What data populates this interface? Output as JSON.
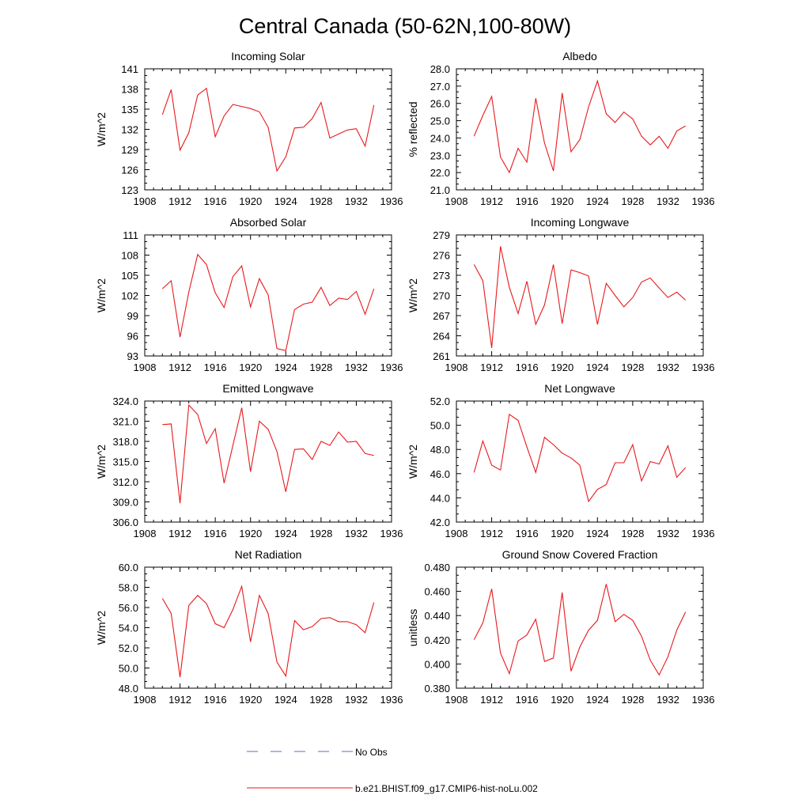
{
  "figure": {
    "title": "Central Canada (50-62N,100-80W)",
    "legend": [
      {
        "label": "No Obs",
        "style": "dashed",
        "color": "#5b6bbf"
      },
      {
        "label": "b.e21.BHIST.f09_g17.CMIP6-hist-noLu.002",
        "style": "solid",
        "color": "#e8191c"
      }
    ]
  },
  "chart_data": [
    {
      "type": "line",
      "title": "Incoming Solar",
      "ylabel": "W/m^2",
      "xlim": [
        1908,
        1936
      ],
      "xticks": [
        "1908",
        "1912",
        "1916",
        "1920",
        "1924",
        "1928",
        "1932",
        "1936"
      ],
      "ylim": [
        123,
        141
      ],
      "yticks": [
        "123",
        "126",
        "129",
        "132",
        "135",
        "138",
        "141"
      ],
      "x": [
        1910,
        1911,
        1912,
        1913,
        1914,
        1915,
        1916,
        1917,
        1918,
        1919,
        1920,
        1921,
        1922,
        1923,
        1924,
        1925,
        1926,
        1927,
        1928,
        1929,
        1930,
        1931,
        1932,
        1933,
        1934
      ],
      "series": [
        {
          "values": [
            134.2,
            137.9,
            128.9,
            131.5,
            137.1,
            138.1,
            130.9,
            134.0,
            135.7,
            135.4,
            135.1,
            134.6,
            132.3,
            125.8,
            127.9,
            132.2,
            132.3,
            133.6,
            136.0,
            130.7,
            131.3,
            131.9,
            132.1,
            129.5,
            135.6
          ],
          "color": "#e8191c"
        }
      ]
    },
    {
      "type": "line",
      "title": "Albedo",
      "ylabel": "% reflected",
      "xlim": [
        1908,
        1936
      ],
      "xticks": [
        "1908",
        "1912",
        "1916",
        "1920",
        "1924",
        "1928",
        "1932",
        "1936"
      ],
      "ylim": [
        21.0,
        28.0
      ],
      "yticks": [
        "21.0",
        "22.0",
        "23.0",
        "24.0",
        "25.0",
        "26.0",
        "27.0",
        "28.0"
      ],
      "x": [
        1910,
        1911,
        1912,
        1913,
        1914,
        1915,
        1916,
        1917,
        1918,
        1919,
        1920,
        1921,
        1922,
        1923,
        1924,
        1925,
        1926,
        1927,
        1928,
        1929,
        1930,
        1931,
        1932,
        1933,
        1934
      ],
      "series": [
        {
          "values": [
            24.1,
            25.3,
            26.4,
            22.9,
            22.0,
            23.4,
            22.6,
            26.3,
            23.7,
            22.1,
            26.6,
            23.2,
            23.9,
            25.8,
            27.3,
            25.4,
            24.9,
            25.5,
            25.1,
            24.1,
            23.6,
            24.1,
            23.4,
            24.4,
            24.7
          ],
          "color": "#e8191c"
        }
      ]
    },
    {
      "type": "line",
      "title": "Absorbed Solar",
      "ylabel": "W/m^2",
      "xlim": [
        1908,
        1936
      ],
      "xticks": [
        "1908",
        "1912",
        "1916",
        "1920",
        "1924",
        "1928",
        "1932",
        "1936"
      ],
      "ylim": [
        93,
        111
      ],
      "yticks": [
        "93",
        "96",
        "99",
        "102",
        "105",
        "108",
        "111"
      ],
      "x": [
        1910,
        1911,
        1912,
        1913,
        1914,
        1915,
        1916,
        1917,
        1918,
        1919,
        1920,
        1921,
        1922,
        1923,
        1924,
        1925,
        1926,
        1927,
        1928,
        1929,
        1930,
        1931,
        1932,
        1933,
        1934
      ],
      "series": [
        {
          "values": [
            103.0,
            104.2,
            95.8,
            102.5,
            108.1,
            106.6,
            102.4,
            100.2,
            104.8,
            106.4,
            100.3,
            104.5,
            102.1,
            94.1,
            93.8,
            99.9,
            100.7,
            101.0,
            103.2,
            100.5,
            101.6,
            101.4,
            102.6,
            99.2,
            103.0
          ],
          "color": "#e8191c"
        }
      ]
    },
    {
      "type": "line",
      "title": "Incoming Longwave",
      "ylabel": "W/m^2",
      "xlim": [
        1908,
        1936
      ],
      "xticks": [
        "1908",
        "1912",
        "1916",
        "1920",
        "1924",
        "1928",
        "1932",
        "1936"
      ],
      "ylim": [
        261,
        279
      ],
      "yticks": [
        "261",
        "264",
        "267",
        "270",
        "273",
        "276",
        "279"
      ],
      "x": [
        1910,
        1911,
        1912,
        1913,
        1914,
        1915,
        1916,
        1917,
        1918,
        1919,
        1920,
        1921,
        1922,
        1923,
        1924,
        1925,
        1926,
        1927,
        1928,
        1929,
        1930,
        1931,
        1932,
        1933,
        1934
      ],
      "series": [
        {
          "values": [
            274.6,
            272.2,
            262.2,
            277.3,
            271.2,
            267.3,
            272.1,
            265.7,
            268.6,
            274.6,
            265.8,
            273.8,
            273.4,
            272.9,
            265.7,
            271.8,
            270.0,
            268.3,
            269.7,
            272.0,
            272.6,
            271.1,
            269.7,
            270.5,
            269.3
          ],
          "color": "#e8191c"
        }
      ]
    },
    {
      "type": "line",
      "title": "Emitted Longwave",
      "ylabel": "W/m^2",
      "xlim": [
        1908,
        1936
      ],
      "xticks": [
        "1908",
        "1912",
        "1916",
        "1920",
        "1924",
        "1928",
        "1932",
        "1936"
      ],
      "ylim": [
        306.0,
        324.0
      ],
      "yticks": [
        "306.0",
        "309.0",
        "312.0",
        "315.0",
        "318.0",
        "321.0",
        "324.0"
      ],
      "x": [
        1910,
        1911,
        1912,
        1913,
        1914,
        1915,
        1916,
        1917,
        1918,
        1919,
        1920,
        1921,
        1922,
        1923,
        1924,
        1925,
        1926,
        1927,
        1928,
        1929,
        1930,
        1931,
        1932,
        1933,
        1934
      ],
      "series": [
        {
          "values": [
            320.5,
            320.6,
            308.8,
            323.4,
            322.0,
            317.7,
            319.9,
            311.8,
            317.4,
            323.0,
            313.5,
            321.0,
            319.8,
            316.5,
            310.5,
            316.8,
            316.9,
            315.3,
            318.0,
            317.4,
            319.4,
            317.9,
            318.0,
            316.2,
            315.9
          ],
          "color": "#e8191c"
        }
      ]
    },
    {
      "type": "line",
      "title": "Net Longwave",
      "ylabel": "W/m^2",
      "xlim": [
        1908,
        1936
      ],
      "xticks": [
        "1908",
        "1912",
        "1916",
        "1920",
        "1924",
        "1928",
        "1932",
        "1936"
      ],
      "ylim": [
        42.0,
        52.0
      ],
      "yticks": [
        "42.0",
        "44.0",
        "46.0",
        "48.0",
        "50.0",
        "52.0"
      ],
      "x": [
        1910,
        1911,
        1912,
        1913,
        1914,
        1915,
        1916,
        1917,
        1918,
        1919,
        1920,
        1921,
        1922,
        1923,
        1924,
        1925,
        1926,
        1927,
        1928,
        1929,
        1930,
        1931,
        1932,
        1933,
        1934
      ],
      "series": [
        {
          "values": [
            46.1,
            48.7,
            46.7,
            46.3,
            50.9,
            50.4,
            48.2,
            46.1,
            49.0,
            48.4,
            47.7,
            47.3,
            46.7,
            43.7,
            44.7,
            45.1,
            46.9,
            46.9,
            48.4,
            45.4,
            47.0,
            46.8,
            48.3,
            45.7,
            46.5
          ],
          "color": "#e8191c"
        }
      ]
    },
    {
      "type": "line",
      "title": "Net Radiation",
      "ylabel": "W/m^2",
      "xlim": [
        1908,
        1936
      ],
      "xticks": [
        "1908",
        "1912",
        "1916",
        "1920",
        "1924",
        "1928",
        "1932",
        "1936"
      ],
      "ylim": [
        48.0,
        60.0
      ],
      "yticks": [
        "48.0",
        "50.0",
        "52.0",
        "54.0",
        "56.0",
        "58.0",
        "60.0"
      ],
      "x": [
        1910,
        1911,
        1912,
        1913,
        1914,
        1915,
        1916,
        1917,
        1918,
        1919,
        1920,
        1921,
        1922,
        1923,
        1924,
        1925,
        1926,
        1927,
        1928,
        1929,
        1930,
        1931,
        1932,
        1933,
        1934
      ],
      "series": [
        {
          "values": [
            56.9,
            55.4,
            49.1,
            56.2,
            57.2,
            56.4,
            54.4,
            54.0,
            55.8,
            58.1,
            52.6,
            57.2,
            55.4,
            50.6,
            49.2,
            54.7,
            53.8,
            54.1,
            54.9,
            55.0,
            54.6,
            54.6,
            54.3,
            53.5,
            56.5
          ],
          "color": "#e8191c"
        }
      ]
    },
    {
      "type": "line",
      "title": "Ground Snow Covered Fraction",
      "ylabel": "unitless",
      "xlim": [
        1908,
        1936
      ],
      "xticks": [
        "1908",
        "1912",
        "1916",
        "1920",
        "1924",
        "1928",
        "1932",
        "1936"
      ],
      "ylim": [
        0.38,
        0.48
      ],
      "yticks": [
        "0.380",
        "0.400",
        "0.420",
        "0.440",
        "0.460",
        "0.480"
      ],
      "x": [
        1910,
        1911,
        1912,
        1913,
        1914,
        1915,
        1916,
        1917,
        1918,
        1919,
        1920,
        1921,
        1922,
        1923,
        1924,
        1925,
        1926,
        1927,
        1928,
        1929,
        1930,
        1931,
        1932,
        1933,
        1934
      ],
      "series": [
        {
          "values": [
            0.42,
            0.434,
            0.462,
            0.409,
            0.392,
            0.419,
            0.424,
            0.437,
            0.402,
            0.405,
            0.459,
            0.394,
            0.414,
            0.428,
            0.436,
            0.466,
            0.435,
            0.441,
            0.436,
            0.423,
            0.403,
            0.391,
            0.406,
            0.428,
            0.443
          ],
          "color": "#e8191c"
        }
      ]
    }
  ]
}
